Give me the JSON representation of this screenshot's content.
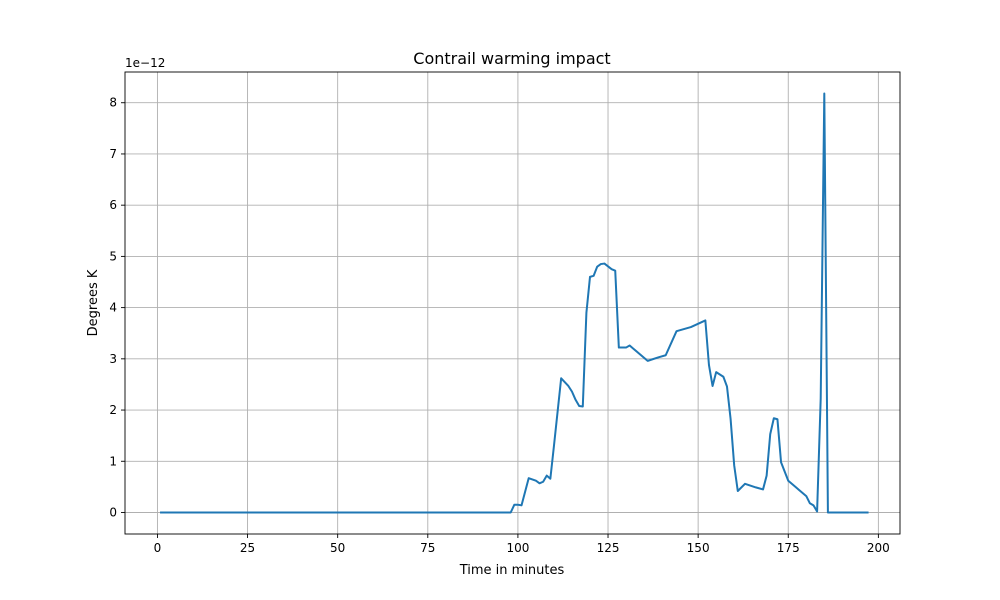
{
  "chart_data": {
    "type": "line",
    "title": "Contrail warming impact",
    "xlabel": "Time in minutes",
    "ylabel": "Degrees K",
    "y_offset_label": "1e−12",
    "xlim": [
      -9,
      206
    ],
    "ylim": [
      -0.42,
      8.6
    ],
    "xticks": [
      0,
      25,
      50,
      75,
      100,
      125,
      150,
      175,
      200
    ],
    "xtick_labels": [
      "0",
      "25",
      "50",
      "75",
      "100",
      "125",
      "150",
      "175",
      "200"
    ],
    "yticks": [
      0,
      1,
      2,
      3,
      4,
      5,
      6,
      7,
      8
    ],
    "ytick_labels": [
      "0",
      "1",
      "2",
      "3",
      "4",
      "5",
      "6",
      "7",
      "8"
    ],
    "grid": true,
    "series": [
      {
        "color": "#1f77b4",
        "x": [
          1,
          98,
          99,
          100,
          101,
          103,
          105,
          106,
          107,
          108,
          109,
          110,
          112,
          114,
          115,
          116,
          117,
          118,
          119,
          120,
          121,
          122,
          123,
          124,
          126,
          127,
          128,
          130,
          131,
          132,
          136,
          139,
          141,
          144,
          148,
          152,
          153,
          154,
          155,
          157,
          158,
          159,
          160,
          161,
          163,
          166,
          168,
          169,
          170,
          171,
          172,
          173,
          175,
          177,
          178,
          180,
          181,
          182,
          183,
          184,
          185,
          186,
          197
        ],
        "y": [
          0,
          0,
          0.15,
          0.15,
          0.14,
          0.67,
          0.62,
          0.57,
          0.6,
          0.72,
          0.66,
          1.3,
          2.62,
          2.47,
          2.36,
          2.2,
          2.08,
          2.07,
          3.9,
          4.6,
          4.62,
          4.8,
          4.85,
          4.86,
          4.75,
          4.72,
          3.22,
          3.22,
          3.26,
          3.2,
          2.96,
          3.03,
          3.07,
          3.54,
          3.62,
          3.75,
          2.88,
          2.47,
          2.74,
          2.65,
          2.46,
          1.83,
          0.92,
          0.42,
          0.56,
          0.49,
          0.45,
          0.72,
          1.53,
          1.84,
          1.82,
          0.98,
          0.62,
          0.5,
          0.44,
          0.32,
          0.18,
          0.14,
          0.02,
          2.22,
          8.18,
          0,
          0
        ]
      }
    ]
  }
}
